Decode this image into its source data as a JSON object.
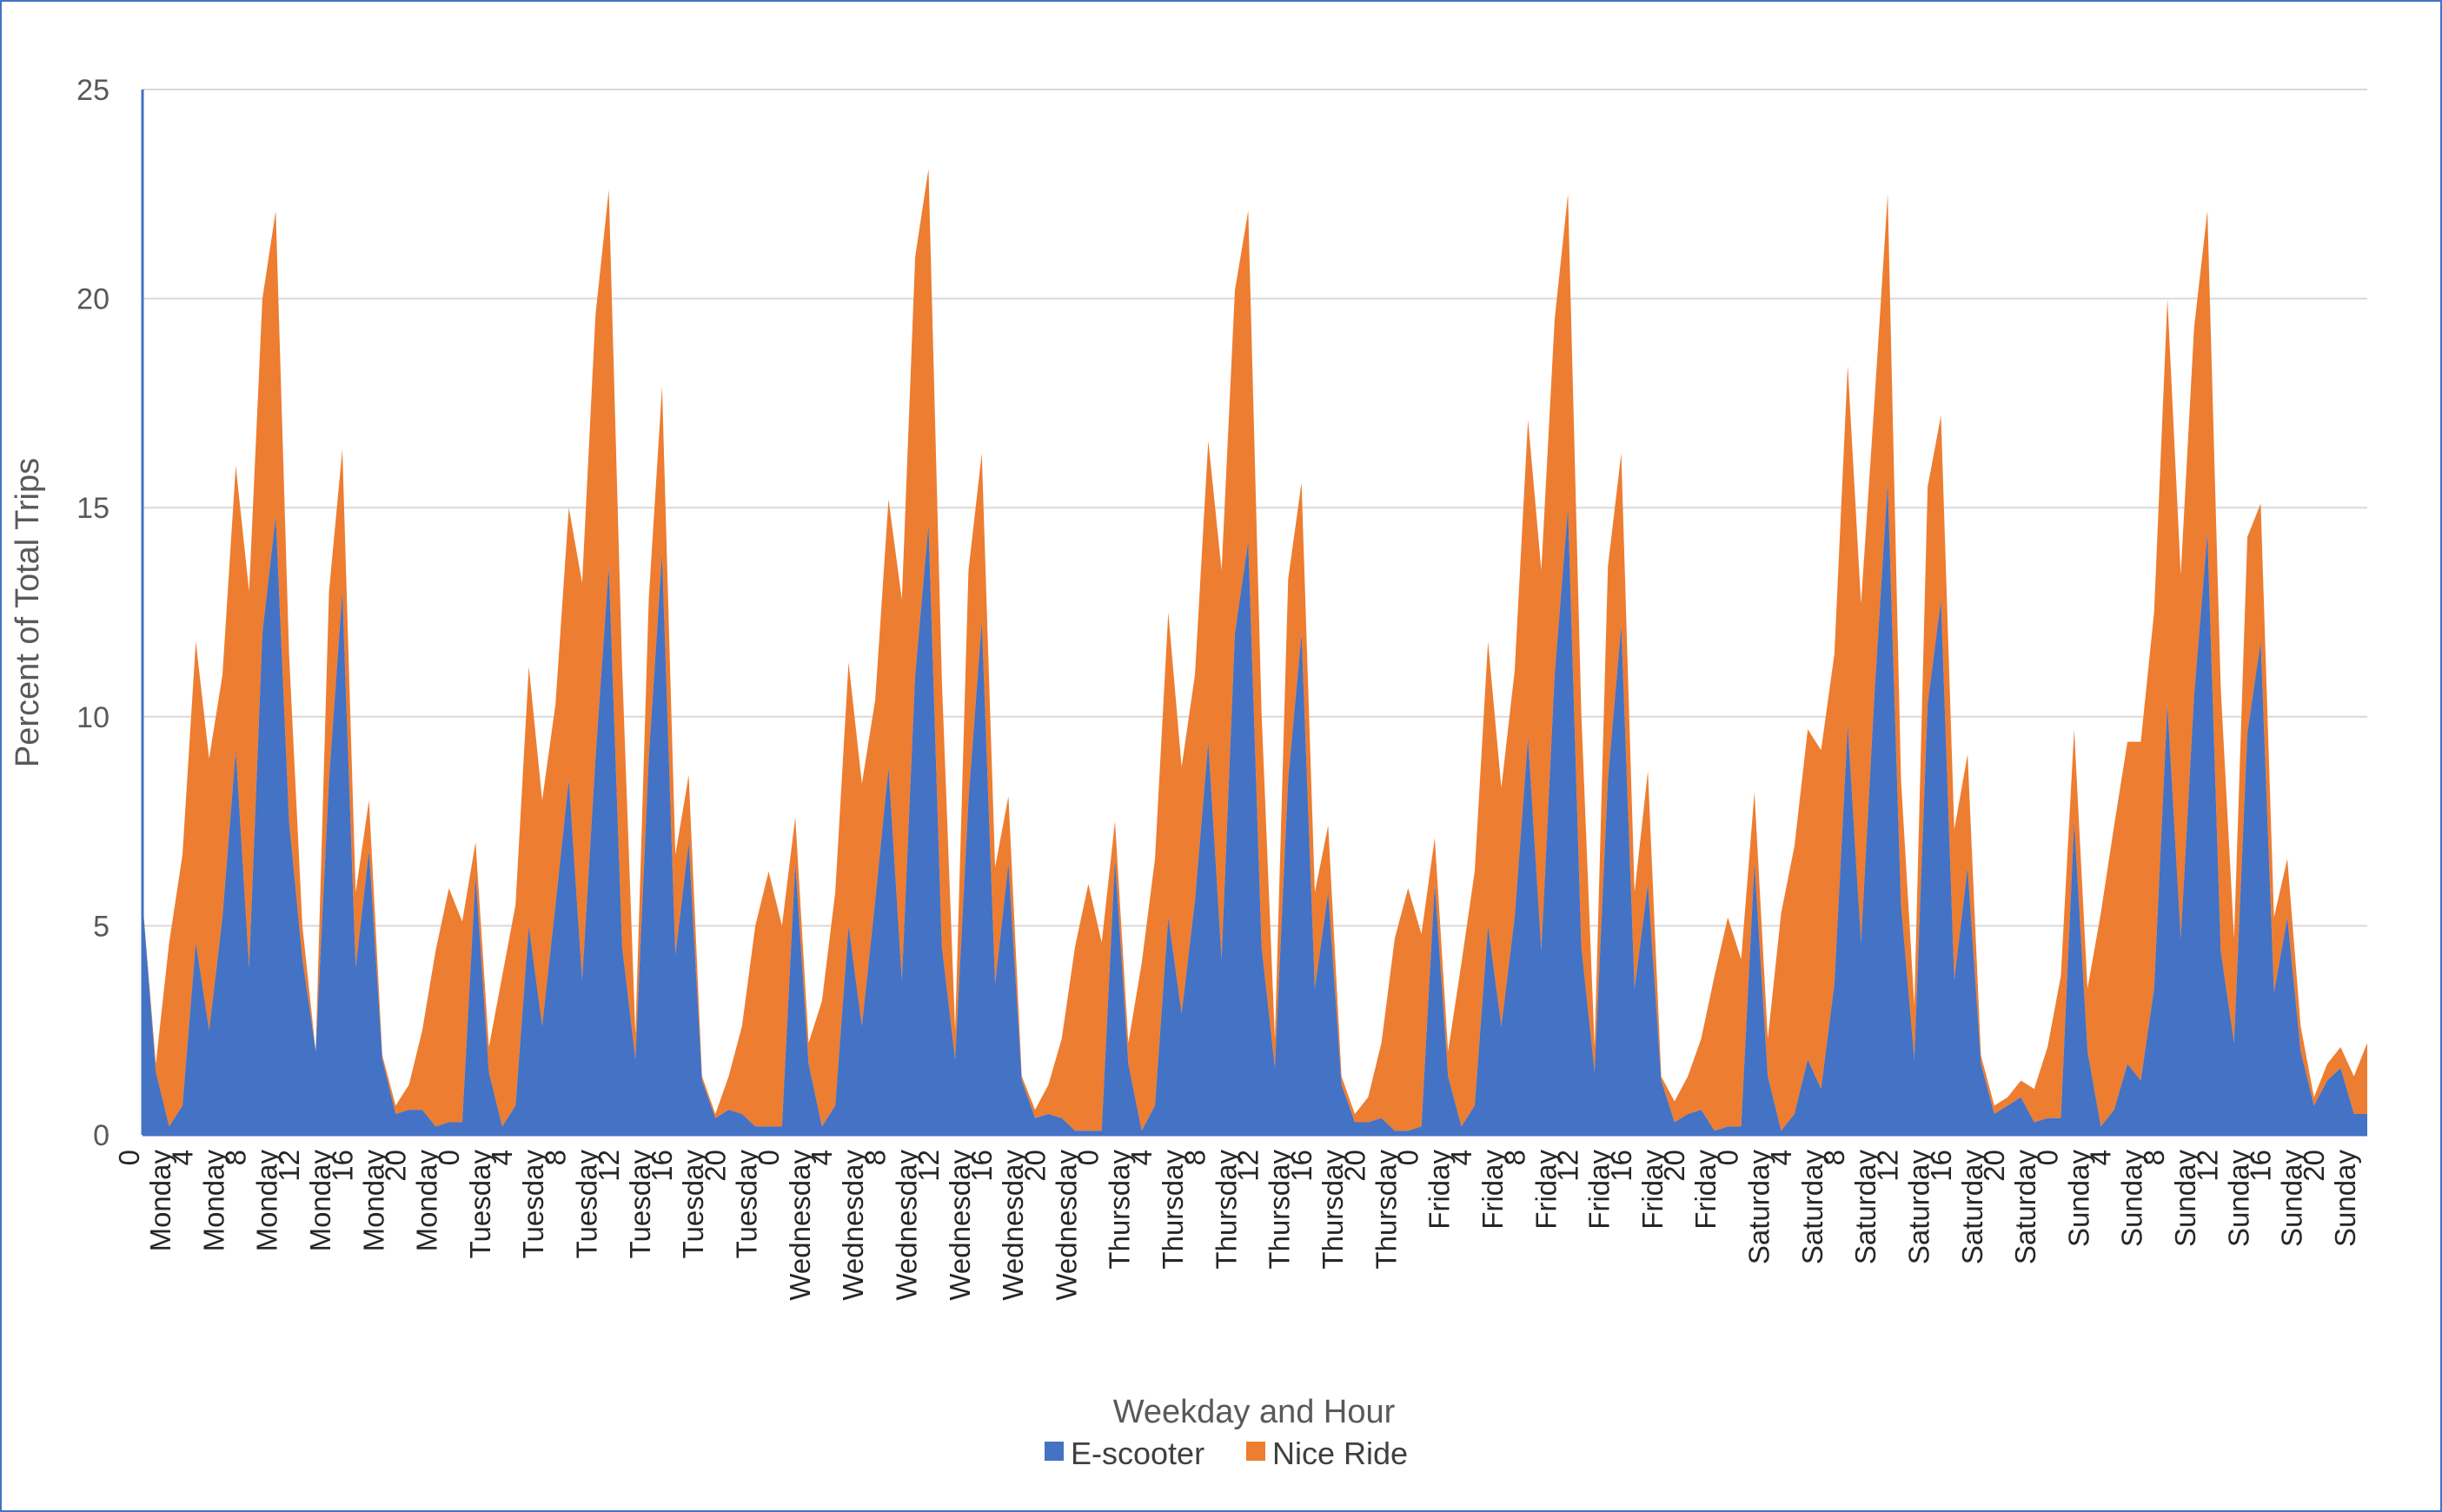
{
  "chart_data": {
    "type": "area",
    "stacked": true,
    "title": "",
    "xlabel": "Weekday and Hour",
    "ylabel": "Percent of Total Trips",
    "ylim": [
      0,
      25
    ],
    "yticks": [
      0,
      5,
      10,
      15,
      20,
      25
    ],
    "grid": true,
    "legend_position": "bottom",
    "days": [
      "Monday",
      "Tuesday",
      "Wednesday",
      "Thursday",
      "Friday",
      "Saturday",
      "Sunday"
    ],
    "hours_per_day": 24,
    "tick_hours": [
      0,
      4,
      8,
      12,
      16,
      20
    ],
    "series": [
      {
        "name": "E-scooter",
        "color": "#4472C4",
        "values": [
          5.6,
          1.5,
          0.2,
          0.7,
          4.6,
          2.5,
          5.2,
          9.2,
          4.0,
          12.0,
          14.8,
          7.5,
          4.2,
          2.0,
          8.5,
          13.0,
          4.0,
          6.8,
          1.8,
          0.5,
          0.6,
          0.6,
          0.2,
          0.3,
          0.3,
          6.2,
          1.5,
          0.2,
          0.7,
          5.0,
          2.6,
          5.5,
          8.5,
          3.7,
          9.0,
          13.6,
          4.5,
          1.8,
          9.0,
          13.9,
          4.3,
          7.0,
          1.3,
          0.4,
          0.6,
          0.5,
          0.2,
          0.2,
          0.2,
          6.5,
          1.7,
          0.2,
          0.7,
          5.0,
          2.6,
          5.6,
          8.8,
          3.7,
          11.0,
          14.6,
          4.5,
          1.8,
          8.0,
          12.3,
          3.6,
          6.5,
          1.3,
          0.4,
          0.5,
          0.4,
          0.1,
          0.1,
          0.1,
          6.6,
          1.7,
          0.1,
          0.7,
          5.2,
          2.9,
          5.6,
          9.4,
          4.2,
          12.0,
          14.2,
          4.5,
          1.6,
          8.5,
          12.0,
          3.5,
          5.8,
          1.2,
          0.3,
          0.3,
          0.4,
          0.1,
          0.1,
          0.2,
          6.0,
          1.4,
          0.2,
          0.7,
          5.0,
          2.6,
          5.2,
          9.5,
          4.4,
          11.0,
          15.0,
          4.5,
          1.5,
          8.5,
          12.2,
          3.5,
          6.0,
          1.3,
          0.3,
          0.5,
          0.6,
          0.1,
          0.2,
          0.2,
          6.5,
          1.4,
          0.1,
          0.5,
          1.8,
          1.1,
          3.6,
          9.8,
          4.6,
          10.5,
          15.6,
          5.5,
          1.8,
          10.3,
          12.8,
          3.7,
          6.4,
          1.7,
          0.5,
          0.7,
          0.9,
          0.3,
          0.4,
          0.4,
          7.5,
          2.0,
          0.2,
          0.6,
          1.7,
          1.3,
          3.5,
          10.3,
          4.7,
          10.5,
          14.4,
          4.4,
          2.2,
          9.6,
          11.8,
          3.4,
          5.2,
          2.0,
          0.7,
          1.3,
          1.6,
          0.5,
          0.5
        ]
      },
      {
        "name": "Nice Ride",
        "color": "#ED7D31",
        "values": [
          0.0,
          0.2,
          4.4,
          6.0,
          7.2,
          6.5,
          5.8,
          6.8,
          9.0,
          8.0,
          7.3,
          4.0,
          0.8,
          0.0,
          4.5,
          3.4,
          1.8,
          1.2,
          0.1,
          0.2,
          0.6,
          1.9,
          4.2,
          5.6,
          4.8,
          0.8,
          0.6,
          3.6,
          4.8,
          6.2,
          5.4,
          4.8,
          6.5,
          9.5,
          10.6,
          9.0,
          6.7,
          0.6,
          3.8,
          4.0,
          2.4,
          1.6,
          0.1,
          0.1,
          0.8,
          2.1,
          4.8,
          6.1,
          4.8,
          1.1,
          0.5,
          3.0,
          5.1,
          6.3,
          5.8,
          4.8,
          6.4,
          9.1,
          10.0,
          8.5,
          6.4,
          0.7,
          5.5,
          4.0,
          2.8,
          1.6,
          0.1,
          0.2,
          0.7,
          1.9,
          4.4,
          5.9,
          4.5,
          0.9,
          0.5,
          4.0,
          5.9,
          7.3,
          5.9,
          5.4,
          7.2,
          9.3,
          8.2,
          7.9,
          5.6,
          0.7,
          4.8,
          3.6,
          2.3,
          1.6,
          0.2,
          0.2,
          0.6,
          1.8,
          4.6,
          5.8,
          4.6,
          1.1,
          0.6,
          3.9,
          5.6,
          6.8,
          5.7,
          5.9,
          7.6,
          9.1,
          8.5,
          7.5,
          5.6,
          0.6,
          5.1,
          4.1,
          2.3,
          2.7,
          0.1,
          0.5,
          0.9,
          1.7,
          3.7,
          5.0,
          4.0,
          1.7,
          0.9,
          5.2,
          6.4,
          7.9,
          8.1,
          7.9,
          8.6,
          8.1,
          7.0,
          6.9,
          3.0,
          1.3,
          5.2,
          4.4,
          3.6,
          2.7,
          0.2,
          0.2,
          0.2,
          0.4,
          0.8,
          1.7,
          3.4,
          2.2,
          1.5,
          5.1,
          6.8,
          7.7,
          8.1,
          9.0,
          9.7,
          8.7,
          8.8,
          7.7,
          6.3,
          2.5,
          4.7,
          3.3,
          1.8,
          1.4,
          0.6,
          0.2,
          0.4,
          0.5,
          0.9,
          1.7
        ]
      }
    ]
  }
}
